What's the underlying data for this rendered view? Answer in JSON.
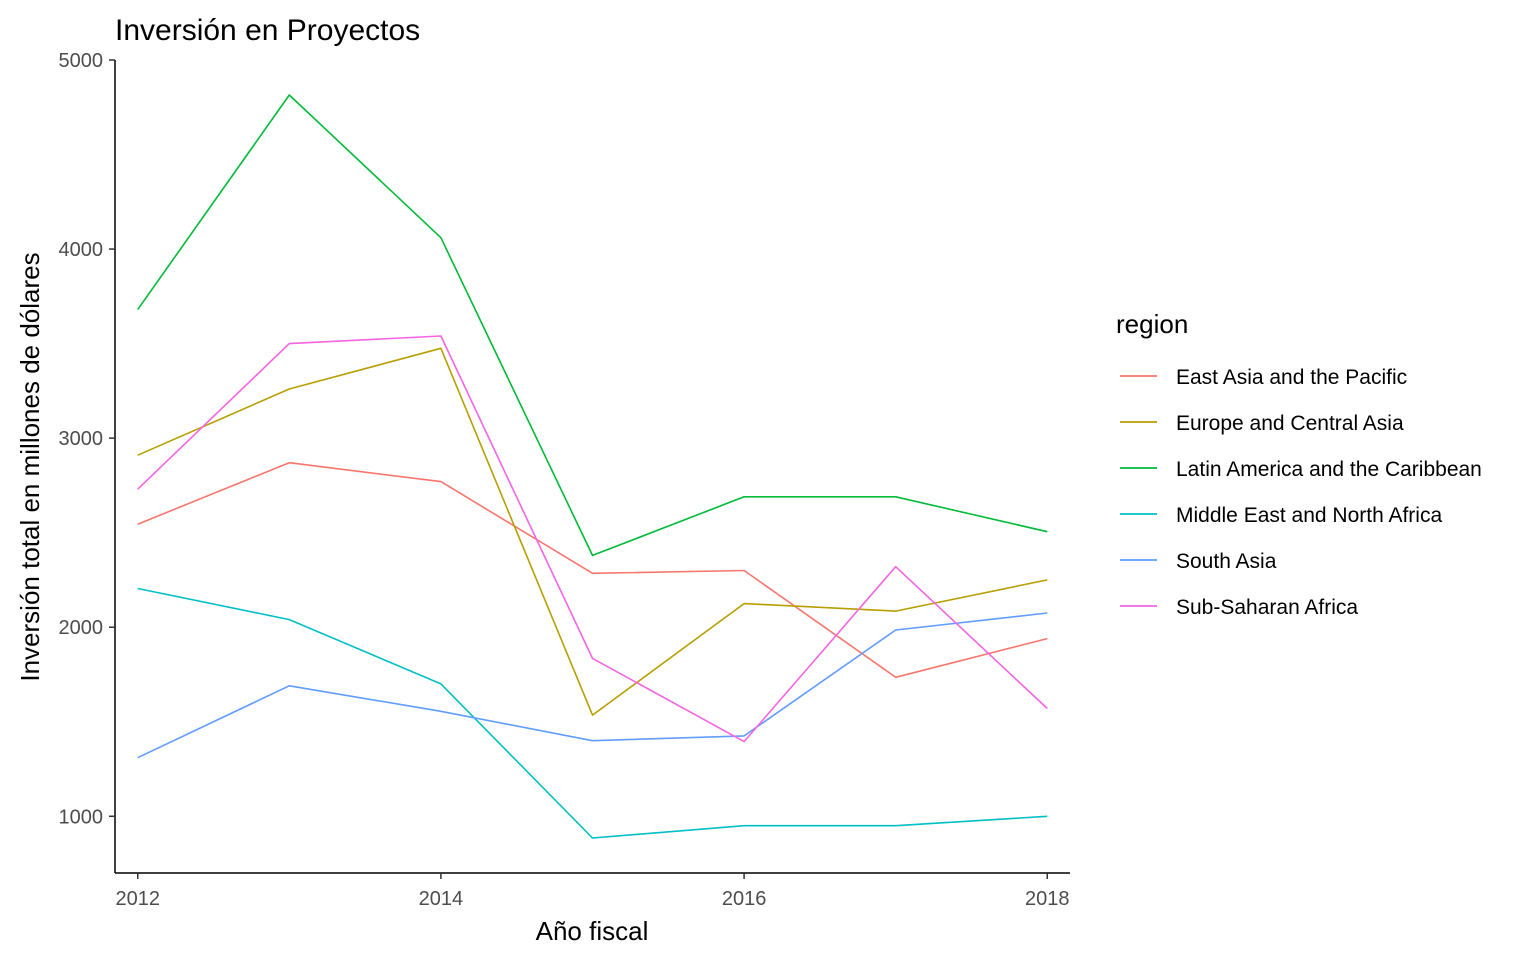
{
  "chart_data": {
    "type": "line",
    "title": "Inversión en Proyectos",
    "xlabel": "Año fiscal",
    "ylabel": "Inversión total en millones de dólares",
    "x": [
      2012,
      2013,
      2014,
      2015,
      2016,
      2017,
      2018
    ],
    "xlim": [
      2011.85,
      2018.15
    ],
    "ylim": [
      700,
      5000
    ],
    "x_ticks": [
      2012,
      2014,
      2016,
      2018
    ],
    "y_ticks": [
      1000,
      2000,
      3000,
      4000,
      5000
    ],
    "grid": false,
    "legend_title": "region",
    "legend_position": "right",
    "series": [
      {
        "name": "East Asia and the Pacific",
        "color": "#F8766D",
        "values": [
          2545,
          2870,
          2770,
          2285,
          2300,
          1735,
          1940
        ]
      },
      {
        "name": "Europe and Central Asia",
        "color": "#B79F00",
        "values": [
          2910,
          3260,
          3475,
          1535,
          2125,
          2085,
          2250
        ]
      },
      {
        "name": "Latin America and the Caribbean",
        "color": "#00BA38",
        "values": [
          3680,
          4815,
          4060,
          2380,
          2690,
          2690,
          2505
        ]
      },
      {
        "name": "Middle East and North Africa",
        "color": "#00BFC4",
        "values": [
          2205,
          2040,
          1700,
          885,
          950,
          950,
          1000
        ]
      },
      {
        "name": "South Asia",
        "color": "#619CFF",
        "values": [
          1310,
          1690,
          1555,
          1400,
          1425,
          1985,
          2075
        ]
      },
      {
        "name": "Sub-Saharan Africa",
        "color": "#F564E3",
        "values": [
          2730,
          3500,
          3540,
          1835,
          1395,
          2320,
          1570
        ]
      }
    ]
  }
}
